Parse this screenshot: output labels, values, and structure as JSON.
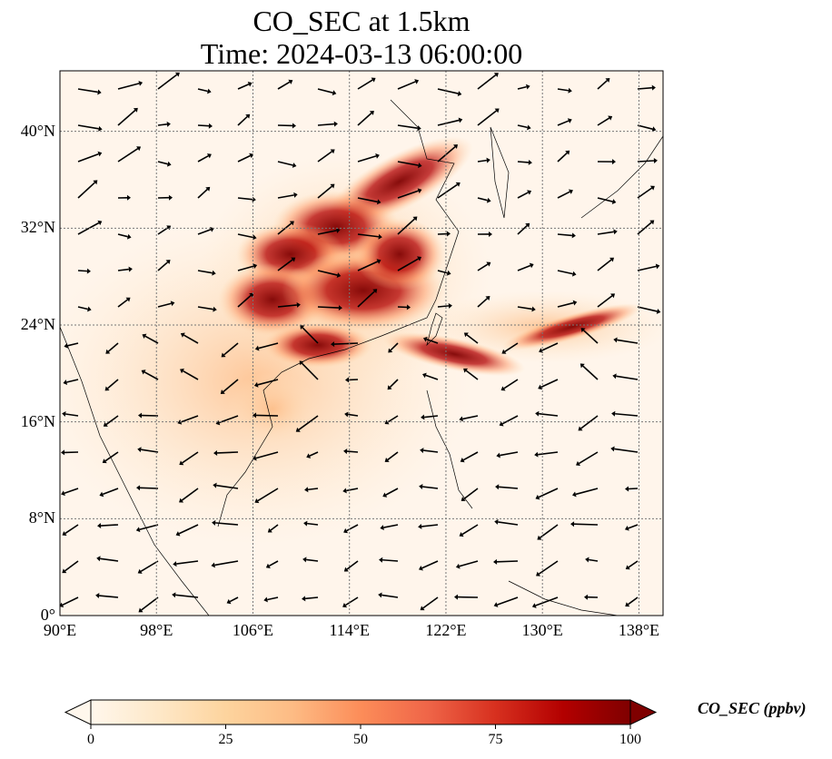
{
  "title_line1": "CO_SEC at 1.5km",
  "title_line2": "Time: 2024-03-13 06:00:00",
  "map": {
    "extent": {
      "lon": [
        90,
        140
      ],
      "lat": [
        0,
        45
      ]
    },
    "lat_ticks": [
      {
        "value": 0,
        "label": "0°"
      },
      {
        "value": 8,
        "label": "8°N"
      },
      {
        "value": 16,
        "label": "16°N"
      },
      {
        "value": 24,
        "label": "24°N"
      },
      {
        "value": 32,
        "label": "32°N"
      },
      {
        "value": 40,
        "label": "40°N"
      }
    ],
    "lon_ticks": [
      {
        "value": 90,
        "label": "90°E"
      },
      {
        "value": 98,
        "label": "98°E"
      },
      {
        "value": 106,
        "label": "106°E"
      },
      {
        "value": 114,
        "label": "114°E"
      },
      {
        "value": 122,
        "label": "122°E"
      },
      {
        "value": 130,
        "label": "130°E"
      },
      {
        "value": 138,
        "label": "138°E"
      }
    ],
    "gridlines": "dotted",
    "background_color": "#fff5eb",
    "field": "CO_SEC concentration (ppbv)",
    "wind_vectors": true
  },
  "colorbar": {
    "title": "CO_SEC (ppbv)",
    "range": [
      0,
      100
    ],
    "extend": "both",
    "colormap": "OrRd",
    "ticks": [
      {
        "value": 0,
        "label": "0"
      },
      {
        "value": 25,
        "label": "25"
      },
      {
        "value": 50,
        "label": "50"
      },
      {
        "value": 75,
        "label": "75"
      },
      {
        "value": 100,
        "label": "100"
      }
    ],
    "colors": [
      "#fff7ec",
      "#fee8c8",
      "#fdd49e",
      "#fdbb84",
      "#fc8d59",
      "#ef6548",
      "#d7301f",
      "#b30000",
      "#7f0000"
    ]
  }
}
